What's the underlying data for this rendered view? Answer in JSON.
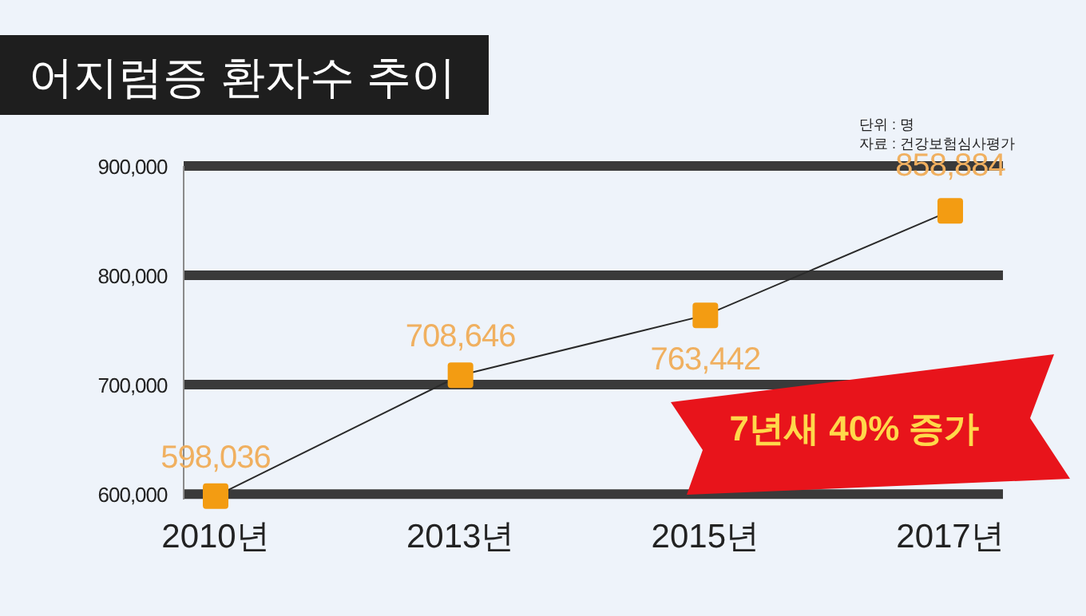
{
  "chart_data": {
    "type": "line",
    "title": "어지럼증 환자수 추이",
    "categories": [
      "2010년",
      "2013년",
      "2015년",
      "2017년"
    ],
    "series": [
      {
        "color": "#f39c12",
        "values": [
          598036,
          708646,
          763442,
          858884
        ],
        "value_labels": [
          "598,036",
          "708,646",
          "763,442",
          "858,884"
        ]
      }
    ],
    "ylim": [
      595000,
      900000
    ],
    "yticks": [
      {
        "value": 600000,
        "label": "600,000"
      },
      {
        "value": 700000,
        "label": "700,000"
      },
      {
        "value": 800000,
        "label": "800,000"
      },
      {
        "value": 900000,
        "label": "900,000"
      }
    ],
    "grid": "y",
    "marker": "square",
    "annotations": [
      "단위 : 명",
      "자료 : 건강보험심사평가",
      "7년새 40% 증가"
    ]
  }
}
